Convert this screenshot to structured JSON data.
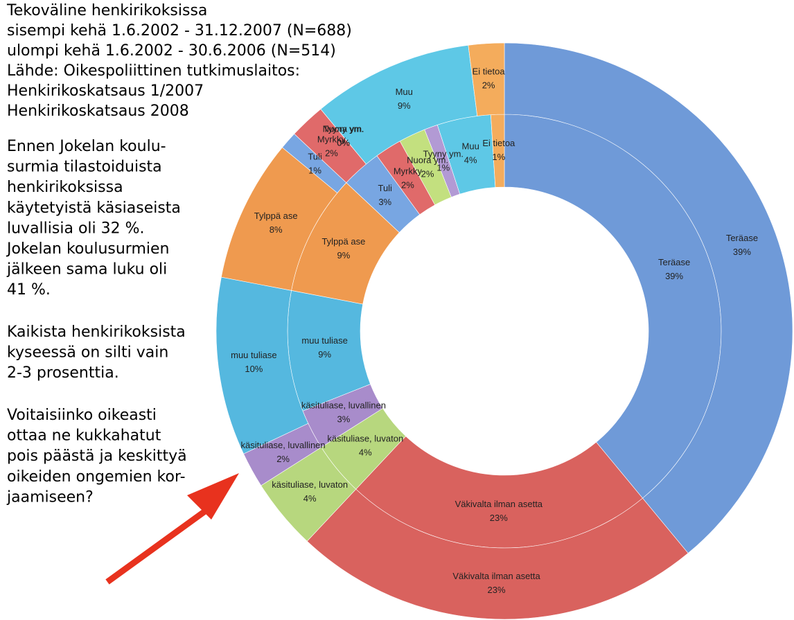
{
  "chart_data": {
    "type": "donut",
    "title_lines": [
      "Tekoväline henkirikoksissa",
      "sisempi kehä 1.6.2002 - 31.12.2007 (N=688)",
      "ulompi kehä 1.6.2002 - 30.6.2006 (N=514)",
      "Lähde: Oikespoliittinen tutkimuslaitos:",
      "Henkirikoskatsaus 1/2007",
      "Henkirikoskatsaus 2008"
    ],
    "annotation_paragraphs": [
      [
        "Ennen Jokelan koulu-",
        "surmia tilastoiduista",
        "henkirikoksissa",
        "käytetyistä käsiaseista",
        "luvallisia oli 32 %.",
        "Jokelan koulusurmien",
        "jälkeen sama luku oli",
        "41 %."
      ],
      [
        "Kaikista henkirikoksista",
        "kyseessä on silti vain",
        "2-3 prosenttia."
      ],
      [
        "Voitaisiinko oikeasti",
        "ottaa ne kukkahatut",
        "pois päästä ja keskittyä",
        "oikeiden ongemien kor-",
        "jaamiseen?"
      ]
    ],
    "categories": [
      "Teräase",
      "Väkivalta ilman asetta",
      "käsituliase, luvaton",
      "käsituliase, luvallinen",
      "muu tuliase",
      "Tylppä ase",
      "Tuli",
      "Myrkky",
      "Nuora ym.",
      "Tyyny ym.",
      "Muu",
      "Ei tietoa"
    ],
    "colors": [
      "#6f9ad8",
      "#d9625e",
      "#b7d77e",
      "#a88ccb",
      "#55b8df",
      "#ef9a4f",
      "#78a6e2",
      "#e06a6a",
      "#c3e07f",
      "#b29ad4",
      "#5ec8e6",
      "#f4ac5c"
    ],
    "series": [
      {
        "values": [
          39,
          23,
          4,
          3,
          9,
          9,
          3,
          2,
          2,
          1,
          4,
          1
        ],
        "value_labels": [
          "39%",
          "23%",
          "4%",
          "3%",
          "9%",
          "9%",
          "3%",
          "2%",
          "2%",
          "1%",
          "4%",
          "1%"
        ]
      },
      {
        "values": [
          39,
          23,
          4,
          2,
          10,
          8,
          1,
          2,
          0,
          0,
          9,
          2
        ],
        "value_labels": [
          "39%",
          "23%",
          "4%",
          "2%",
          "10%",
          "8%",
          "1%",
          "2%",
          "0%",
          "0%",
          "9%",
          "2%"
        ]
      }
    ]
  }
}
